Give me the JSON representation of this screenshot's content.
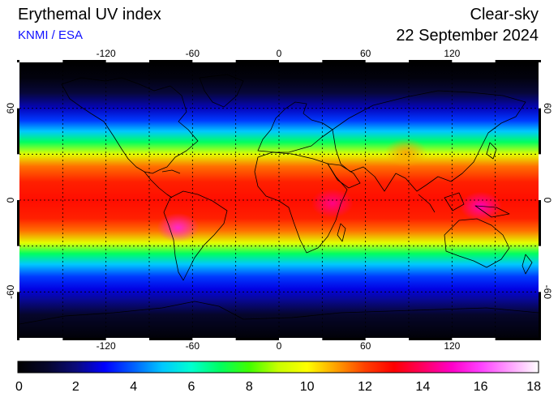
{
  "header": {
    "title": "Erythemal UV index",
    "source": "KNMI / ESA",
    "condition": "Clear-sky",
    "date": "22 September 2024"
  },
  "map": {
    "lon_range": [
      -180,
      180
    ],
    "lat_range": [
      -90,
      90
    ],
    "lon_ticks": [
      -120,
      -60,
      0,
      60,
      120
    ],
    "lon_tick_labels": [
      "-120",
      "-60",
      "0",
      "60",
      "120"
    ],
    "lat_ticks": [
      60,
      0,
      -60
    ],
    "lat_tick_labels": [
      "60",
      "0",
      "-60"
    ],
    "grid_step_deg": 30,
    "gridlines": "dotted"
  },
  "colorbar": {
    "min": 0,
    "max": 18,
    "tick_values": [
      0,
      2,
      4,
      6,
      8,
      10,
      12,
      14,
      16,
      18
    ],
    "tick_labels": [
      "0",
      "2",
      "4",
      "6",
      "8",
      "10",
      "12",
      "14",
      "16",
      "18"
    ],
    "stops": [
      {
        "value": 0,
        "color": "#000000"
      },
      {
        "value": 1,
        "color": "#06062a"
      },
      {
        "value": 2,
        "color": "#0a0a7a"
      },
      {
        "value": 3,
        "color": "#0000ff"
      },
      {
        "value": 4,
        "color": "#0060ff"
      },
      {
        "value": 5,
        "color": "#00c8ff"
      },
      {
        "value": 6,
        "color": "#00ffd0"
      },
      {
        "value": 7,
        "color": "#00ff60"
      },
      {
        "value": 8,
        "color": "#40ff00"
      },
      {
        "value": 9,
        "color": "#c8ff00"
      },
      {
        "value": 10,
        "color": "#ffff00"
      },
      {
        "value": 11,
        "color": "#ffa000"
      },
      {
        "value": 12,
        "color": "#ff4000"
      },
      {
        "value": 13,
        "color": "#ff0000"
      },
      {
        "value": 14,
        "color": "#ff0060"
      },
      {
        "value": 15,
        "color": "#ff00c8"
      },
      {
        "value": 16,
        "color": "#ff40ff"
      },
      {
        "value": 17,
        "color": "#ffa0ff"
      },
      {
        "value": 18,
        "color": "#ffffff"
      }
    ]
  },
  "uv_profile": [
    {
      "lat": 90,
      "uv": 0
    },
    {
      "lat": 80,
      "uv": 0.3
    },
    {
      "lat": 70,
      "uv": 1.2
    },
    {
      "lat": 60,
      "uv": 2.5
    },
    {
      "lat": 52,
      "uv": 3.6
    },
    {
      "lat": 45,
      "uv": 5.0
    },
    {
      "lat": 38,
      "uv": 7.0
    },
    {
      "lat": 30,
      "uv": 9.5
    },
    {
      "lat": 22,
      "uv": 11.5
    },
    {
      "lat": 12,
      "uv": 12.5
    },
    {
      "lat": 0,
      "uv": 12.8
    },
    {
      "lat": -12,
      "uv": 12.5
    },
    {
      "lat": -20,
      "uv": 11.5
    },
    {
      "lat": -28,
      "uv": 9.5
    },
    {
      "lat": -35,
      "uv": 7.0
    },
    {
      "lat": -42,
      "uv": 5.0
    },
    {
      "lat": -50,
      "uv": 3.6
    },
    {
      "lat": -58,
      "uv": 2.8
    },
    {
      "lat": -65,
      "uv": 2.2
    },
    {
      "lat": -75,
      "uv": 1.0
    },
    {
      "lat": -90,
      "uv": 0.2
    }
  ],
  "hotspots": [
    {
      "name": "Andes",
      "lon": -70,
      "lat": -18,
      "uv": 15.5
    },
    {
      "name": "East Africa",
      "lon": 37,
      "lat": -2,
      "uv": 14.5
    },
    {
      "name": "Maritime Continent",
      "lon": 140,
      "lat": -4,
      "uv": 15.0
    },
    {
      "name": "Tibetan Plateau",
      "lon": 88,
      "lat": 31,
      "uv": 11.0
    }
  ]
}
